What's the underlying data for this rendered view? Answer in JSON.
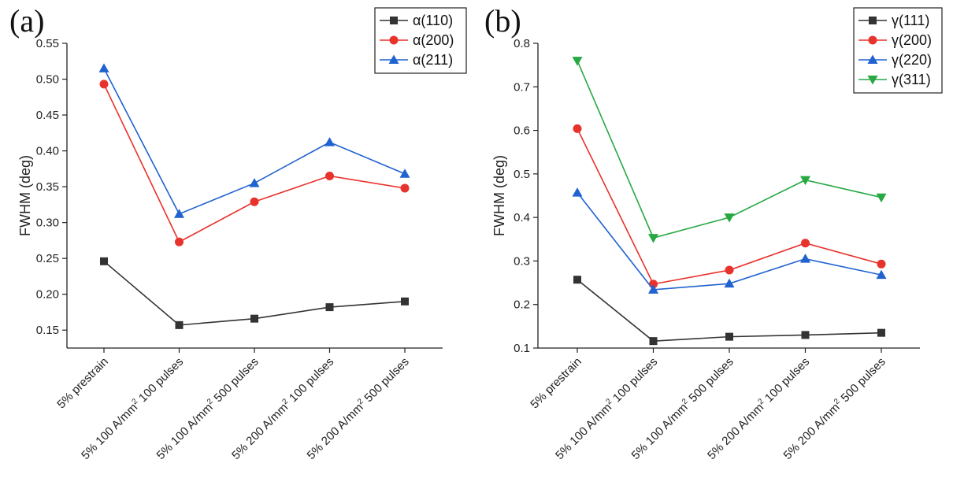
{
  "chart_data": [
    {
      "type": "line",
      "panel_label": "(a)",
      "ylabel": "FWHM (deg)",
      "xlabel": "",
      "ylim": [
        0.125,
        0.55
      ],
      "yticks": [
        "0.15",
        "0.20",
        "0.25",
        "0.30",
        "0.35",
        "0.40",
        "0.45",
        "0.50",
        "0.55"
      ],
      "categories": [
        {
          "main": "5% prestrain",
          "sup": "",
          "tail": ""
        },
        {
          "main": "5% 100 A/mm",
          "sup": "2",
          "tail": " 100 pulses"
        },
        {
          "main": "5% 100 A/mm",
          "sup": "2",
          "tail": " 500 pulses"
        },
        {
          "main": "5% 200 A/mm",
          "sup": "2",
          "tail": " 100 pulses"
        },
        {
          "main": "5% 200 A/mm",
          "sup": "2",
          "tail": " 500 pulses"
        }
      ],
      "legend_position": "top-right",
      "series": [
        {
          "name": "α(110)",
          "color": "#333333",
          "marker": "square",
          "values": [
            0.246,
            0.157,
            0.166,
            0.182,
            0.19
          ]
        },
        {
          "name": "α(200)",
          "color": "#e8322c",
          "marker": "circle",
          "values": [
            0.493,
            0.273,
            0.329,
            0.365,
            0.348
          ]
        },
        {
          "name": "α(211)",
          "color": "#1f62d0",
          "marker": "triangle-up",
          "values": [
            0.515,
            0.312,
            0.355,
            0.412,
            0.368
          ]
        }
      ]
    },
    {
      "type": "line",
      "panel_label": "(b)",
      "ylabel": "FWHM (deg)",
      "xlabel": "",
      "ylim": [
        0.1,
        0.8
      ],
      "yticks": [
        "0.1",
        "0.2",
        "0.3",
        "0.4",
        "0.5",
        "0.6",
        "0.7",
        "0.8"
      ],
      "categories": [
        {
          "main": "5% prestrain",
          "sup": "",
          "tail": ""
        },
        {
          "main": "5% 100 A/mm",
          "sup": "2",
          "tail": " 100 pulses"
        },
        {
          "main": "5% 100 A/mm",
          "sup": "2",
          "tail": " 500 pulses"
        },
        {
          "main": "5% 200 A/mm",
          "sup": "2",
          "tail": " 100 pulses"
        },
        {
          "main": "5% 200 A/mm",
          "sup": "2",
          "tail": " 500 pulses"
        }
      ],
      "legend_position": "top-right",
      "series": [
        {
          "name": "γ(111)",
          "color": "#333333",
          "marker": "square",
          "values": [
            0.257,
            0.116,
            0.126,
            0.13,
            0.135
          ]
        },
        {
          "name": "γ(200)",
          "color": "#e8322c",
          "marker": "circle",
          "values": [
            0.604,
            0.247,
            0.279,
            0.341,
            0.293
          ]
        },
        {
          "name": "γ(220)",
          "color": "#1f62d0",
          "marker": "triangle-up",
          "values": [
            0.457,
            0.234,
            0.248,
            0.305,
            0.268
          ]
        },
        {
          "name": "γ(311)",
          "color": "#27a843",
          "marker": "triangle-down",
          "values": [
            0.76,
            0.353,
            0.4,
            0.486,
            0.446
          ]
        }
      ]
    }
  ]
}
